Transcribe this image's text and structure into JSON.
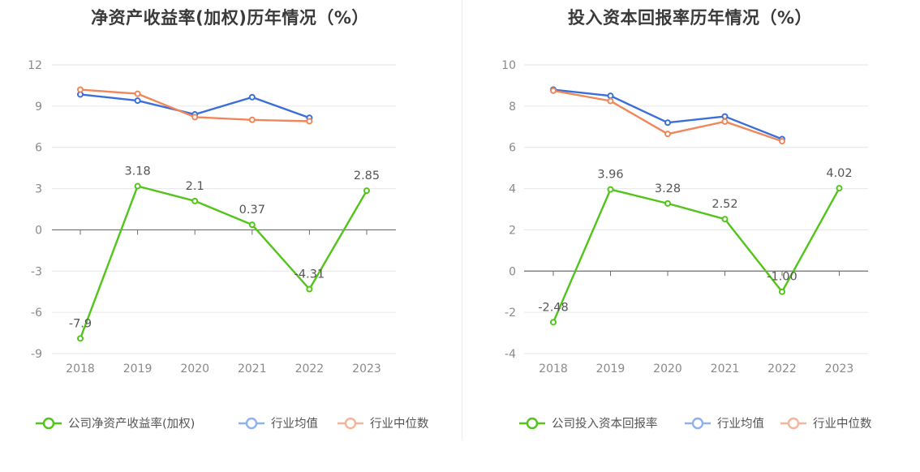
{
  "colors": {
    "company": "#52c41a",
    "industry_avg": "#3b6fd8",
    "industry_median": "#f0875a",
    "legend_avg": "#8fb1ee",
    "legend_median": "#f6b49a",
    "grid": "#e6e6e6",
    "axis": "#6e6e6e"
  },
  "chart_data": [
    {
      "type": "line",
      "title": "净资产收益率(加权)历年情况（%）",
      "categories": [
        "2018",
        "2019",
        "2020",
        "2021",
        "2022",
        "2023"
      ],
      "ylim": [
        -9,
        12
      ],
      "yticks": [
        12,
        9,
        6,
        3,
        0,
        -3,
        -6,
        -9
      ],
      "ytick_labels": [
        "12",
        "9",
        "6",
        "3",
        "0",
        "-3",
        "-6",
        "-9"
      ],
      "series": [
        {
          "name": "公司净资产收益率(加权)",
          "key": "company",
          "values": [
            -7.9,
            3.18,
            2.1,
            0.37,
            -4.31,
            2.85
          ],
          "labels": [
            "-7.9",
            "3.18",
            "2.1",
            "0.37",
            "-4.31",
            "2.85"
          ]
        },
        {
          "name": "行业均值",
          "key": "industry_avg",
          "values": [
            9.85,
            9.4,
            8.4,
            9.65,
            8.15,
            null
          ]
        },
        {
          "name": "行业中位数",
          "key": "industry_median",
          "values": [
            10.2,
            9.9,
            8.2,
            8.0,
            7.9,
            null
          ]
        }
      ],
      "legend_position": "bottom-center"
    },
    {
      "type": "line",
      "title": "投入资本回报率历年情况（%）",
      "categories": [
        "2018",
        "2019",
        "2020",
        "2021",
        "2022",
        "2023"
      ],
      "ylim": [
        -4,
        10
      ],
      "yticks": [
        10,
        8,
        6,
        4,
        2,
        0,
        -2,
        -4
      ],
      "ytick_labels": [
        "10",
        "8",
        "6",
        "4",
        "2",
        "0",
        "-2",
        "-4"
      ],
      "series": [
        {
          "name": "公司投入资本回报率",
          "key": "company",
          "values": [
            -2.48,
            3.96,
            3.28,
            2.52,
            -1.0,
            4.02
          ],
          "labels": [
            "-2.48",
            "3.96",
            "3.28",
            "2.52",
            "-1.00",
            "4.02"
          ]
        },
        {
          "name": "行业均值",
          "key": "industry_avg",
          "values": [
            8.8,
            8.5,
            7.2,
            7.5,
            6.4,
            null
          ]
        },
        {
          "name": "行业中位数",
          "key": "industry_median",
          "values": [
            8.75,
            8.25,
            6.65,
            7.25,
            6.3,
            null
          ]
        }
      ],
      "legend_position": "bottom-center"
    }
  ]
}
